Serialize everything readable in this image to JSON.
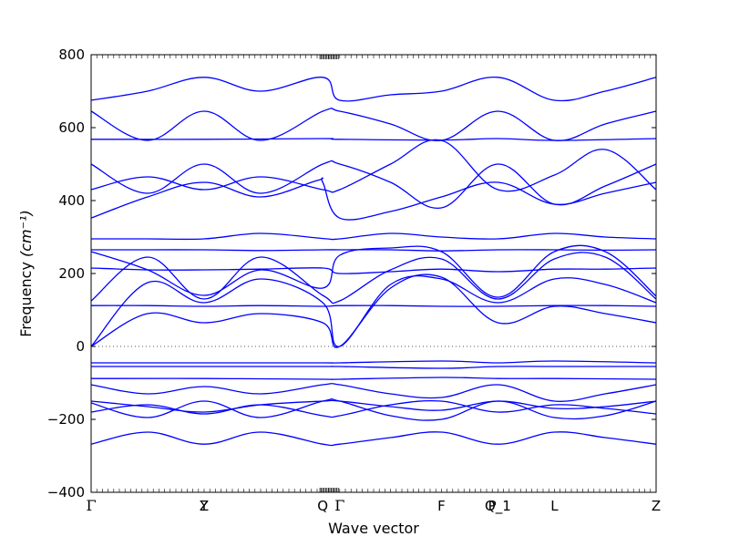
{
  "chart_data": {
    "type": "line",
    "xlabel": "Wave vector",
    "ylabel": "Frequency",
    "ylabel_unit": "(cm⁻¹)",
    "ylim": [
      -400,
      800
    ],
    "yticks": [
      -400,
      -200,
      0,
      200,
      400,
      600,
      800
    ],
    "zero_line": true,
    "grid": false,
    "color": "#0000ff",
    "high_symmetry_points": [
      {
        "label": "Γ",
        "x": 0.0
      },
      {
        "label": "Y",
        "x": 0.2
      },
      {
        "label": "Z",
        "x": 0.2
      },
      {
        "label": "Q",
        "x": 0.41
      },
      {
        "label": "Γ",
        "x": 0.44
      },
      {
        "label": "F",
        "x": 0.62
      },
      {
        "label": "P",
        "x": 0.71
      },
      {
        "label": "Q_1",
        "x": 0.72
      },
      {
        "label": "L",
        "x": 0.82
      },
      {
        "label": "Z",
        "x": 1.0
      }
    ],
    "series": [
      {
        "x": [
          0,
          0.1,
          0.2,
          0.3,
          0.41,
          0.44,
          0.53,
          0.62,
          0.72,
          0.82,
          0.91,
          1.0
        ],
        "values": [
          675,
          700,
          738,
          700,
          738,
          675,
          690,
          700,
          738,
          675,
          700,
          738
        ]
      },
      {
        "x": [
          0,
          0.1,
          0.2,
          0.3,
          0.41,
          0.44,
          0.53,
          0.62,
          0.72,
          0.82,
          0.91,
          1.0
        ],
        "values": [
          645,
          565,
          645,
          565,
          645,
          645,
          610,
          565,
          645,
          565,
          610,
          645
        ]
      },
      {
        "x": [
          0,
          0.2,
          0.41,
          0.44,
          0.62,
          0.72,
          0.82,
          1.0
        ],
        "values": [
          568,
          568,
          570,
          568,
          566,
          570,
          565,
          570
        ]
      },
      {
        "x": [
          0,
          0.1,
          0.2,
          0.3,
          0.41,
          0.44,
          0.53,
          0.62,
          0.72,
          0.82,
          0.91,
          1.0
        ],
        "values": [
          500,
          420,
          500,
          420,
          500,
          500,
          450,
          380,
          500,
          390,
          440,
          500
        ]
      },
      {
        "x": [
          0,
          0.1,
          0.2,
          0.3,
          0.41,
          0.44,
          0.53,
          0.62,
          0.72,
          0.82,
          0.91,
          1.0
        ],
        "values": [
          430,
          465,
          430,
          465,
          430,
          430,
          500,
          565,
          430,
          470,
          540,
          430
        ]
      },
      {
        "x": [
          0,
          0.1,
          0.2,
          0.3,
          0.4,
          0.41,
          0.44,
          0.53,
          0.62,
          0.72,
          0.82,
          0.91,
          1.0
        ],
        "values": [
          352,
          410,
          450,
          410,
          455,
          450,
          352,
          370,
          410,
          450,
          390,
          420,
          450
        ]
      },
      {
        "x": [
          0,
          0.1,
          0.2,
          0.3,
          0.41,
          0.44,
          0.53,
          0.62,
          0.72,
          0.82,
          0.91,
          1.0
        ],
        "values": [
          295,
          295,
          295,
          310,
          296,
          295,
          310,
          300,
          295,
          310,
          300,
          295
        ]
      },
      {
        "x": [
          0,
          0.1,
          0.2,
          0.3,
          0.41,
          0.44,
          0.53,
          0.62,
          0.72,
          0.82,
          0.91,
          1.0
        ],
        "values": [
          265,
          265,
          265,
          263,
          265,
          265,
          265,
          262,
          265,
          265,
          264,
          265
        ]
      },
      {
        "x": [
          0,
          0.1,
          0.2,
          0.3,
          0.41,
          0.44,
          0.53,
          0.62,
          0.72,
          0.82,
          0.91,
          1.0
        ],
        "values": [
          260,
          210,
          140,
          210,
          160,
          250,
          270,
          260,
          135,
          260,
          260,
          138
        ]
      },
      {
        "x": [
          0,
          0.1,
          0.2,
          0.3,
          0.41,
          0.44,
          0.53,
          0.62,
          0.72,
          0.82,
          0.91,
          1.0
        ],
        "values": [
          215,
          210,
          210,
          212,
          215,
          200,
          205,
          212,
          205,
          212,
          212,
          215
        ]
      },
      {
        "x": [
          0,
          0.1,
          0.2,
          0.3,
          0.41,
          0.44,
          0.53,
          0.62,
          0.72,
          0.82,
          0.91,
          1.0
        ],
        "values": [
          125,
          245,
          130,
          245,
          140,
          125,
          210,
          240,
          130,
          240,
          245,
          130
        ]
      },
      {
        "x": [
          0,
          0.1,
          0.2,
          0.3,
          0.41,
          0.44,
          0.53,
          0.62,
          0.72,
          0.82,
          0.91,
          1.0
        ],
        "values": [
          112,
          112,
          110,
          112,
          110,
          112,
          112,
          110,
          110,
          112,
          112,
          110
        ]
      },
      {
        "x": [
          0,
          0.1,
          0.2,
          0.3,
          0.41,
          0.44,
          0.53,
          0.62,
          0.72,
          0.82,
          0.91,
          1.0
        ],
        "values": [
          0,
          90,
          65,
          90,
          65,
          0,
          160,
          190,
          65,
          110,
          90,
          65
        ]
      },
      {
        "x": [
          0,
          0.1,
          0.2,
          0.3,
          0.41,
          0.44,
          0.53,
          0.62,
          0.72,
          0.82,
          0.91,
          1.0
        ],
        "values": [
          0,
          175,
          120,
          185,
          120,
          0,
          170,
          185,
          120,
          185,
          170,
          120
        ]
      },
      {
        "x": [
          0,
          0.2,
          0.41,
          0.44,
          0.62,
          0.72,
          0.82,
          1.0
        ],
        "values": [
          -45,
          -45,
          -45,
          -45,
          -40,
          -45,
          -40,
          -45
        ]
      },
      {
        "x": [
          0,
          0.2,
          0.41,
          0.44,
          0.62,
          0.72,
          0.82,
          1.0
        ],
        "values": [
          -55,
          -55,
          -55,
          -55,
          -60,
          -55,
          -55,
          -55
        ]
      },
      {
        "x": [
          0,
          0.2,
          0.41,
          0.44,
          0.62,
          0.72,
          0.82,
          1.0
        ],
        "values": [
          -88,
          -88,
          -90,
          -90,
          -85,
          -88,
          -88,
          -90
        ]
      },
      {
        "x": [
          0,
          0.1,
          0.2,
          0.3,
          0.41,
          0.44,
          0.53,
          0.62,
          0.72,
          0.82,
          0.91,
          1.0
        ],
        "values": [
          -105,
          -130,
          -110,
          -130,
          -105,
          -105,
          -130,
          -140,
          -105,
          -150,
          -130,
          -105
        ]
      },
      {
        "x": [
          0,
          0.1,
          0.2,
          0.3,
          0.41,
          0.44,
          0.53,
          0.62,
          0.72,
          0.82,
          0.91,
          1.0
        ],
        "values": [
          -150,
          -165,
          -180,
          -160,
          -150,
          -150,
          -165,
          -175,
          -150,
          -170,
          -165,
          -150
        ]
      },
      {
        "x": [
          0,
          0.1,
          0.2,
          0.3,
          0.41,
          0.44,
          0.53,
          0.62,
          0.72,
          0.82,
          0.91,
          1.0
        ],
        "values": [
          -180,
          -160,
          -185,
          -160,
          -190,
          -190,
          -160,
          -150,
          -180,
          -160,
          -170,
          -185
        ]
      },
      {
        "x": [
          0,
          0.1,
          0.2,
          0.3,
          0.41,
          0.44,
          0.53,
          0.62,
          0.72,
          0.82,
          0.91,
          1.0
        ],
        "values": [
          -155,
          -195,
          -150,
          -195,
          -150,
          -150,
          -190,
          -200,
          -150,
          -195,
          -190,
          -150
        ]
      },
      {
        "x": [
          0,
          0.1,
          0.2,
          0.3,
          0.41,
          0.44,
          0.53,
          0.62,
          0.72,
          0.82,
          0.91,
          1.0
        ],
        "values": [
          -268,
          -235,
          -268,
          -235,
          -268,
          -268,
          -250,
          -235,
          -268,
          -235,
          -250,
          -268
        ]
      }
    ]
  }
}
